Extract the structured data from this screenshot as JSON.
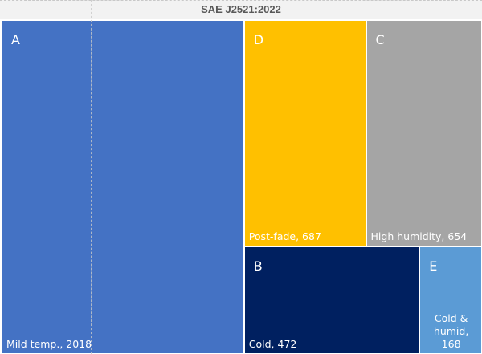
{
  "chart_data": {
    "type": "treemap",
    "title": "SAE J2521:2022",
    "categories": [
      "A",
      "D",
      "C",
      "B",
      "E"
    ],
    "values": [
      2018,
      687,
      654,
      472,
      168
    ],
    "value_labels": [
      "Mild temp., 2018",
      "Post-fade, 687",
      "High humidity, 654",
      "Cold, 472",
      "Cold & humid, 168"
    ],
    "colors": [
      "#4472c4",
      "#ffc000",
      "#a5a5a5",
      "#002060",
      "#5b9bd5"
    ]
  }
}
